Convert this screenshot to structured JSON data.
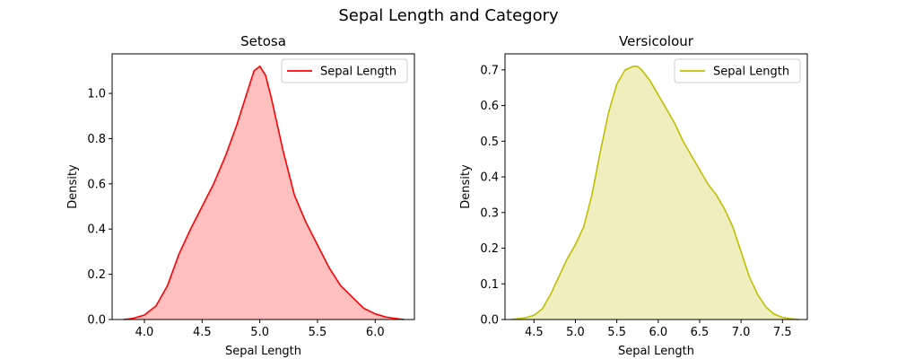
{
  "figure": {
    "suptitle": "Sepal Length and Category"
  },
  "chart_data": [
    {
      "type": "area",
      "title": "Setosa",
      "xlabel": "Sepal Length",
      "ylabel": "Density",
      "xlim": [
        3.72,
        6.34
      ],
      "ylim": [
        0,
        1.175
      ],
      "xticks": [
        "4.0",
        "4.5",
        "5.0",
        "5.5",
        "6.0"
      ],
      "yticks": [
        "0.0",
        "0.2",
        "0.4",
        "0.6",
        "0.8",
        "1.0"
      ],
      "legend": {
        "position": "top-right",
        "label": "Sepal Length"
      },
      "line_color": "#ff0000",
      "fill_color": "#ffbfbf",
      "series": [
        {
          "name": "Sepal Length",
          "x": [
            3.82,
            3.9,
            4.0,
            4.1,
            4.2,
            4.3,
            4.4,
            4.5,
            4.6,
            4.7,
            4.8,
            4.9,
            4.95,
            5.0,
            5.05,
            5.1,
            5.2,
            5.3,
            5.4,
            5.5,
            5.6,
            5.7,
            5.8,
            5.9,
            6.0,
            6.1,
            6.2,
            6.25
          ],
          "y": [
            0.0,
            0.005,
            0.02,
            0.06,
            0.15,
            0.29,
            0.4,
            0.5,
            0.6,
            0.72,
            0.86,
            1.02,
            1.1,
            1.12,
            1.08,
            0.98,
            0.75,
            0.55,
            0.43,
            0.33,
            0.23,
            0.15,
            0.1,
            0.05,
            0.025,
            0.01,
            0.003,
            0.0
          ]
        }
      ]
    },
    {
      "type": "area",
      "title": "Versicolour",
      "xlabel": "Sepal Length",
      "ylabel": "Density",
      "xlim": [
        4.15,
        7.8
      ],
      "ylim": [
        0,
        0.745
      ],
      "xticks": [
        "4.5",
        "5.0",
        "5.5",
        "6.0",
        "6.5",
        "7.0",
        "7.5"
      ],
      "yticks": [
        "0.0",
        "0.1",
        "0.2",
        "0.3",
        "0.4",
        "0.5",
        "0.6",
        "0.7"
      ],
      "legend": {
        "position": "top-right",
        "label": "Sepal Length"
      },
      "line_color": "#bfbf00",
      "fill_color": "#eeeebf",
      "series": [
        {
          "name": "Sepal Length",
          "x": [
            4.22,
            4.4,
            4.5,
            4.6,
            4.7,
            4.8,
            4.9,
            5.0,
            5.1,
            5.2,
            5.3,
            5.4,
            5.5,
            5.6,
            5.7,
            5.75,
            5.8,
            5.9,
            6.0,
            6.1,
            6.2,
            6.3,
            6.4,
            6.5,
            6.6,
            6.7,
            6.8,
            6.9,
            7.0,
            7.1,
            7.2,
            7.3,
            7.4,
            7.5,
            7.6,
            7.7
          ],
          "y": [
            0.0,
            0.005,
            0.012,
            0.03,
            0.07,
            0.12,
            0.17,
            0.21,
            0.26,
            0.35,
            0.47,
            0.58,
            0.66,
            0.7,
            0.71,
            0.71,
            0.7,
            0.67,
            0.63,
            0.59,
            0.55,
            0.5,
            0.46,
            0.42,
            0.38,
            0.35,
            0.31,
            0.26,
            0.19,
            0.12,
            0.07,
            0.035,
            0.015,
            0.006,
            0.002,
            0.0
          ]
        }
      ]
    }
  ]
}
